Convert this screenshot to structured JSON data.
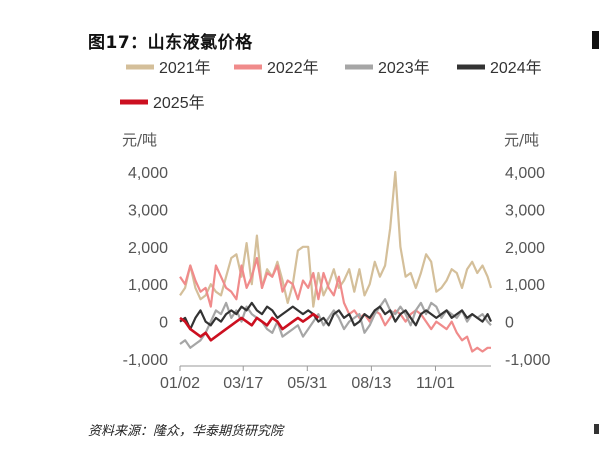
{
  "title": "图17：山东液氯价格",
  "source": "资料来源：隆众，华泰期货研究院",
  "chart_data": {
    "type": "line",
    "unit_left": "元/吨",
    "unit_right": "元/吨",
    "ylim": [
      -1000,
      4000
    ],
    "yticks": [
      -1000,
      0,
      1000,
      2000,
      3000,
      4000
    ],
    "ytick_labels": [
      "-1,000",
      "0",
      "1,000",
      "2,000",
      "3,000",
      "4,000"
    ],
    "xlim": [
      0,
      364
    ],
    "xticks": [
      0,
      74,
      149,
      224,
      299
    ],
    "xtick_labels": [
      "01/02",
      "03/17",
      "05/31",
      "08/13",
      "11/01"
    ],
    "legend_position": "top",
    "grid": false,
    "series": [
      {
        "name": "2021年",
        "color": "#d4bf9a",
        "x": [
          0,
          6,
          12,
          18,
          24,
          30,
          36,
          42,
          48,
          54,
          60,
          66,
          72,
          78,
          84,
          90,
          96,
          102,
          108,
          114,
          120,
          126,
          132,
          138,
          144,
          150,
          156,
          162,
          168,
          174,
          180,
          186,
          192,
          198,
          204,
          210,
          216,
          222,
          228,
          234,
          240,
          246,
          252,
          258,
          264,
          270,
          276,
          282,
          288,
          294,
          300,
          306,
          312,
          318,
          324,
          330,
          336,
          342,
          348,
          354,
          360,
          364
        ],
        "values": [
          700,
          900,
          1500,
          900,
          600,
          700,
          1000,
          800,
          700,
          1200,
          1700,
          1800,
          1200,
          2100,
          1000,
          2300,
          900,
          1400,
          1200,
          1600,
          1100,
          500,
          1000,
          1900,
          2000,
          2000,
          400,
          1300,
          700,
          1000,
          1400,
          900,
          1100,
          1400,
          800,
          1400,
          700,
          1000,
          1600,
          1200,
          1500,
          2500,
          4000,
          2000,
          1200,
          1300,
          900,
          1300,
          1800,
          1600,
          800,
          900,
          1100,
          1400,
          1300,
          900,
          1400,
          1600,
          1300,
          1500,
          1200,
          900
        ]
      },
      {
        "name": "2022年",
        "color": "#f08b8b",
        "x": [
          0,
          6,
          12,
          18,
          24,
          30,
          36,
          42,
          48,
          54,
          60,
          66,
          72,
          78,
          84,
          90,
          96,
          102,
          108,
          114,
          120,
          126,
          132,
          138,
          144,
          150,
          156,
          162,
          168,
          174,
          180,
          186,
          192,
          198,
          204,
          210,
          216,
          222,
          228,
          234,
          240,
          246,
          252,
          258,
          264,
          270,
          276,
          282,
          288,
          294,
          300,
          306,
          312,
          318,
          324,
          330,
          336,
          342,
          348,
          354,
          360,
          364
        ],
        "values": [
          1200,
          1000,
          1500,
          1100,
          800,
          900,
          400,
          1500,
          1200,
          900,
          800,
          600,
          1500,
          900,
          1200,
          1700,
          900,
          1300,
          1200,
          1500,
          800,
          1100,
          1000,
          600,
          1100,
          900,
          1300,
          600,
          1300,
          900,
          700,
          1200,
          500,
          200,
          300,
          100,
          200,
          0,
          300,
          200,
          -100,
          100,
          300,
          200,
          0,
          200,
          300,
          200,
          0,
          -200,
          0,
          -100,
          -200,
          0,
          -300,
          -500,
          -400,
          -800,
          -700,
          -800,
          -700,
          -700
        ]
      },
      {
        "name": "2023年",
        "color": "#a6a6a6",
        "x": [
          0,
          6,
          12,
          18,
          24,
          30,
          36,
          42,
          48,
          54,
          60,
          66,
          72,
          78,
          84,
          90,
          96,
          102,
          108,
          114,
          120,
          126,
          132,
          138,
          144,
          150,
          156,
          162,
          168,
          174,
          180,
          186,
          192,
          198,
          204,
          210,
          216,
          222,
          228,
          234,
          240,
          246,
          252,
          258,
          264,
          270,
          276,
          282,
          288,
          294,
          300,
          306,
          312,
          318,
          324,
          330,
          336,
          342,
          348,
          354,
          360,
          364
        ],
        "values": [
          -600,
          -500,
          -700,
          -600,
          -500,
          -300,
          0,
          300,
          200,
          500,
          100,
          300,
          0,
          400,
          200,
          100,
          0,
          -200,
          -300,
          0,
          -400,
          -300,
          -200,
          -100,
          -400,
          -200,
          0,
          200,
          -100,
          100,
          300,
          100,
          -200,
          0,
          100,
          200,
          -300,
          -100,
          200,
          400,
          600,
          300,
          200,
          400,
          200,
          -100,
          300,
          500,
          200,
          500,
          400,
          100,
          300,
          200,
          100,
          300,
          0,
          200,
          100,
          200,
          0,
          -100
        ]
      },
      {
        "name": "2024年",
        "color": "#333333",
        "x": [
          0,
          6,
          12,
          18,
          24,
          30,
          36,
          42,
          48,
          54,
          60,
          66,
          72,
          78,
          84,
          90,
          96,
          102,
          108,
          114,
          120,
          126,
          132,
          138,
          144,
          150,
          156,
          162,
          168,
          174,
          180,
          186,
          192,
          198,
          204,
          210,
          216,
          222,
          228,
          234,
          240,
          246,
          252,
          258,
          264,
          270,
          276,
          282,
          288,
          294,
          300,
          306,
          312,
          318,
          324,
          330,
          336,
          342,
          348,
          354,
          360,
          364
        ],
        "values": [
          0,
          100,
          -200,
          100,
          300,
          0,
          -100,
          100,
          0,
          200,
          300,
          200,
          400,
          300,
          500,
          300,
          200,
          400,
          300,
          100,
          200,
          300,
          400,
          300,
          200,
          300,
          200,
          0,
          100,
          -100,
          200,
          300,
          100,
          200,
          -100,
          0,
          200,
          100,
          300,
          400,
          200,
          300,
          0,
          200,
          300,
          100,
          -100,
          200,
          300,
          200,
          100,
          200,
          300,
          100,
          200,
          300,
          100,
          200,
          100,
          0,
          200,
          0
        ]
      },
      {
        "name": "2025年",
        "color": "#cc1020",
        "x": [
          0,
          6,
          12,
          18,
          24,
          30,
          36,
          42,
          48,
          54,
          60,
          66,
          72,
          78,
          84,
          90,
          96,
          102,
          108,
          114,
          120,
          126,
          132,
          138,
          144,
          150,
          156,
          162
        ],
        "values": [
          100,
          0,
          -200,
          -300,
          -400,
          -300,
          -500,
          -400,
          -300,
          -200,
          -100,
          0,
          100,
          0,
          -100,
          100,
          0,
          -100,
          100,
          0,
          -200,
          -100,
          0,
          100,
          0,
          100,
          200,
          100
        ]
      }
    ]
  }
}
